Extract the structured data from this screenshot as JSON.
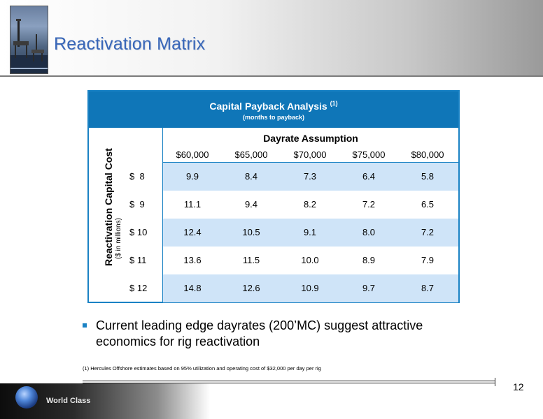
{
  "header": {
    "title": "Reactivation Matrix"
  },
  "table": {
    "title": "Capital Payback Analysis",
    "title_note": "(1)",
    "subtitle": "(months to payback)",
    "column_group_title": "Dayrate Assumption",
    "row_group_title": "Reactivation Capital Cost",
    "row_group_subtitle": "($ in millions)",
    "columns": [
      "$60,000",
      "$65,000",
      "$70,000",
      "$75,000",
      "$80,000"
    ],
    "rows": [
      {
        "label": "$  8",
        "values": [
          "9.9",
          "8.4",
          "7.3",
          "6.4",
          "5.8"
        ]
      },
      {
        "label": "$  9",
        "values": [
          "11.1",
          "9.4",
          "8.2",
          "7.2",
          "6.5"
        ]
      },
      {
        "label": "$ 10",
        "values": [
          "12.4",
          "10.5",
          "9.1",
          "8.0",
          "7.2"
        ]
      },
      {
        "label": "$ 11",
        "values": [
          "13.6",
          "11.5",
          "10.0",
          "8.9",
          "7.9"
        ]
      },
      {
        "label": "$ 12",
        "values": [
          "14.8",
          "12.6",
          "10.9",
          "9.7",
          "8.7"
        ]
      }
    ],
    "shade_color": "#cfe4f8",
    "header_color": "#0f76b8"
  },
  "bullet": {
    "text": "Current leading edge dayrates (200’MC) suggest attractive economics for rig reactivation"
  },
  "footnote": "(1) Hercules Offshore estimates based on 95% utilization and operating cost of $32,000 per day per rig",
  "footer": {
    "page_number": "12",
    "tagline": "World Class"
  }
}
